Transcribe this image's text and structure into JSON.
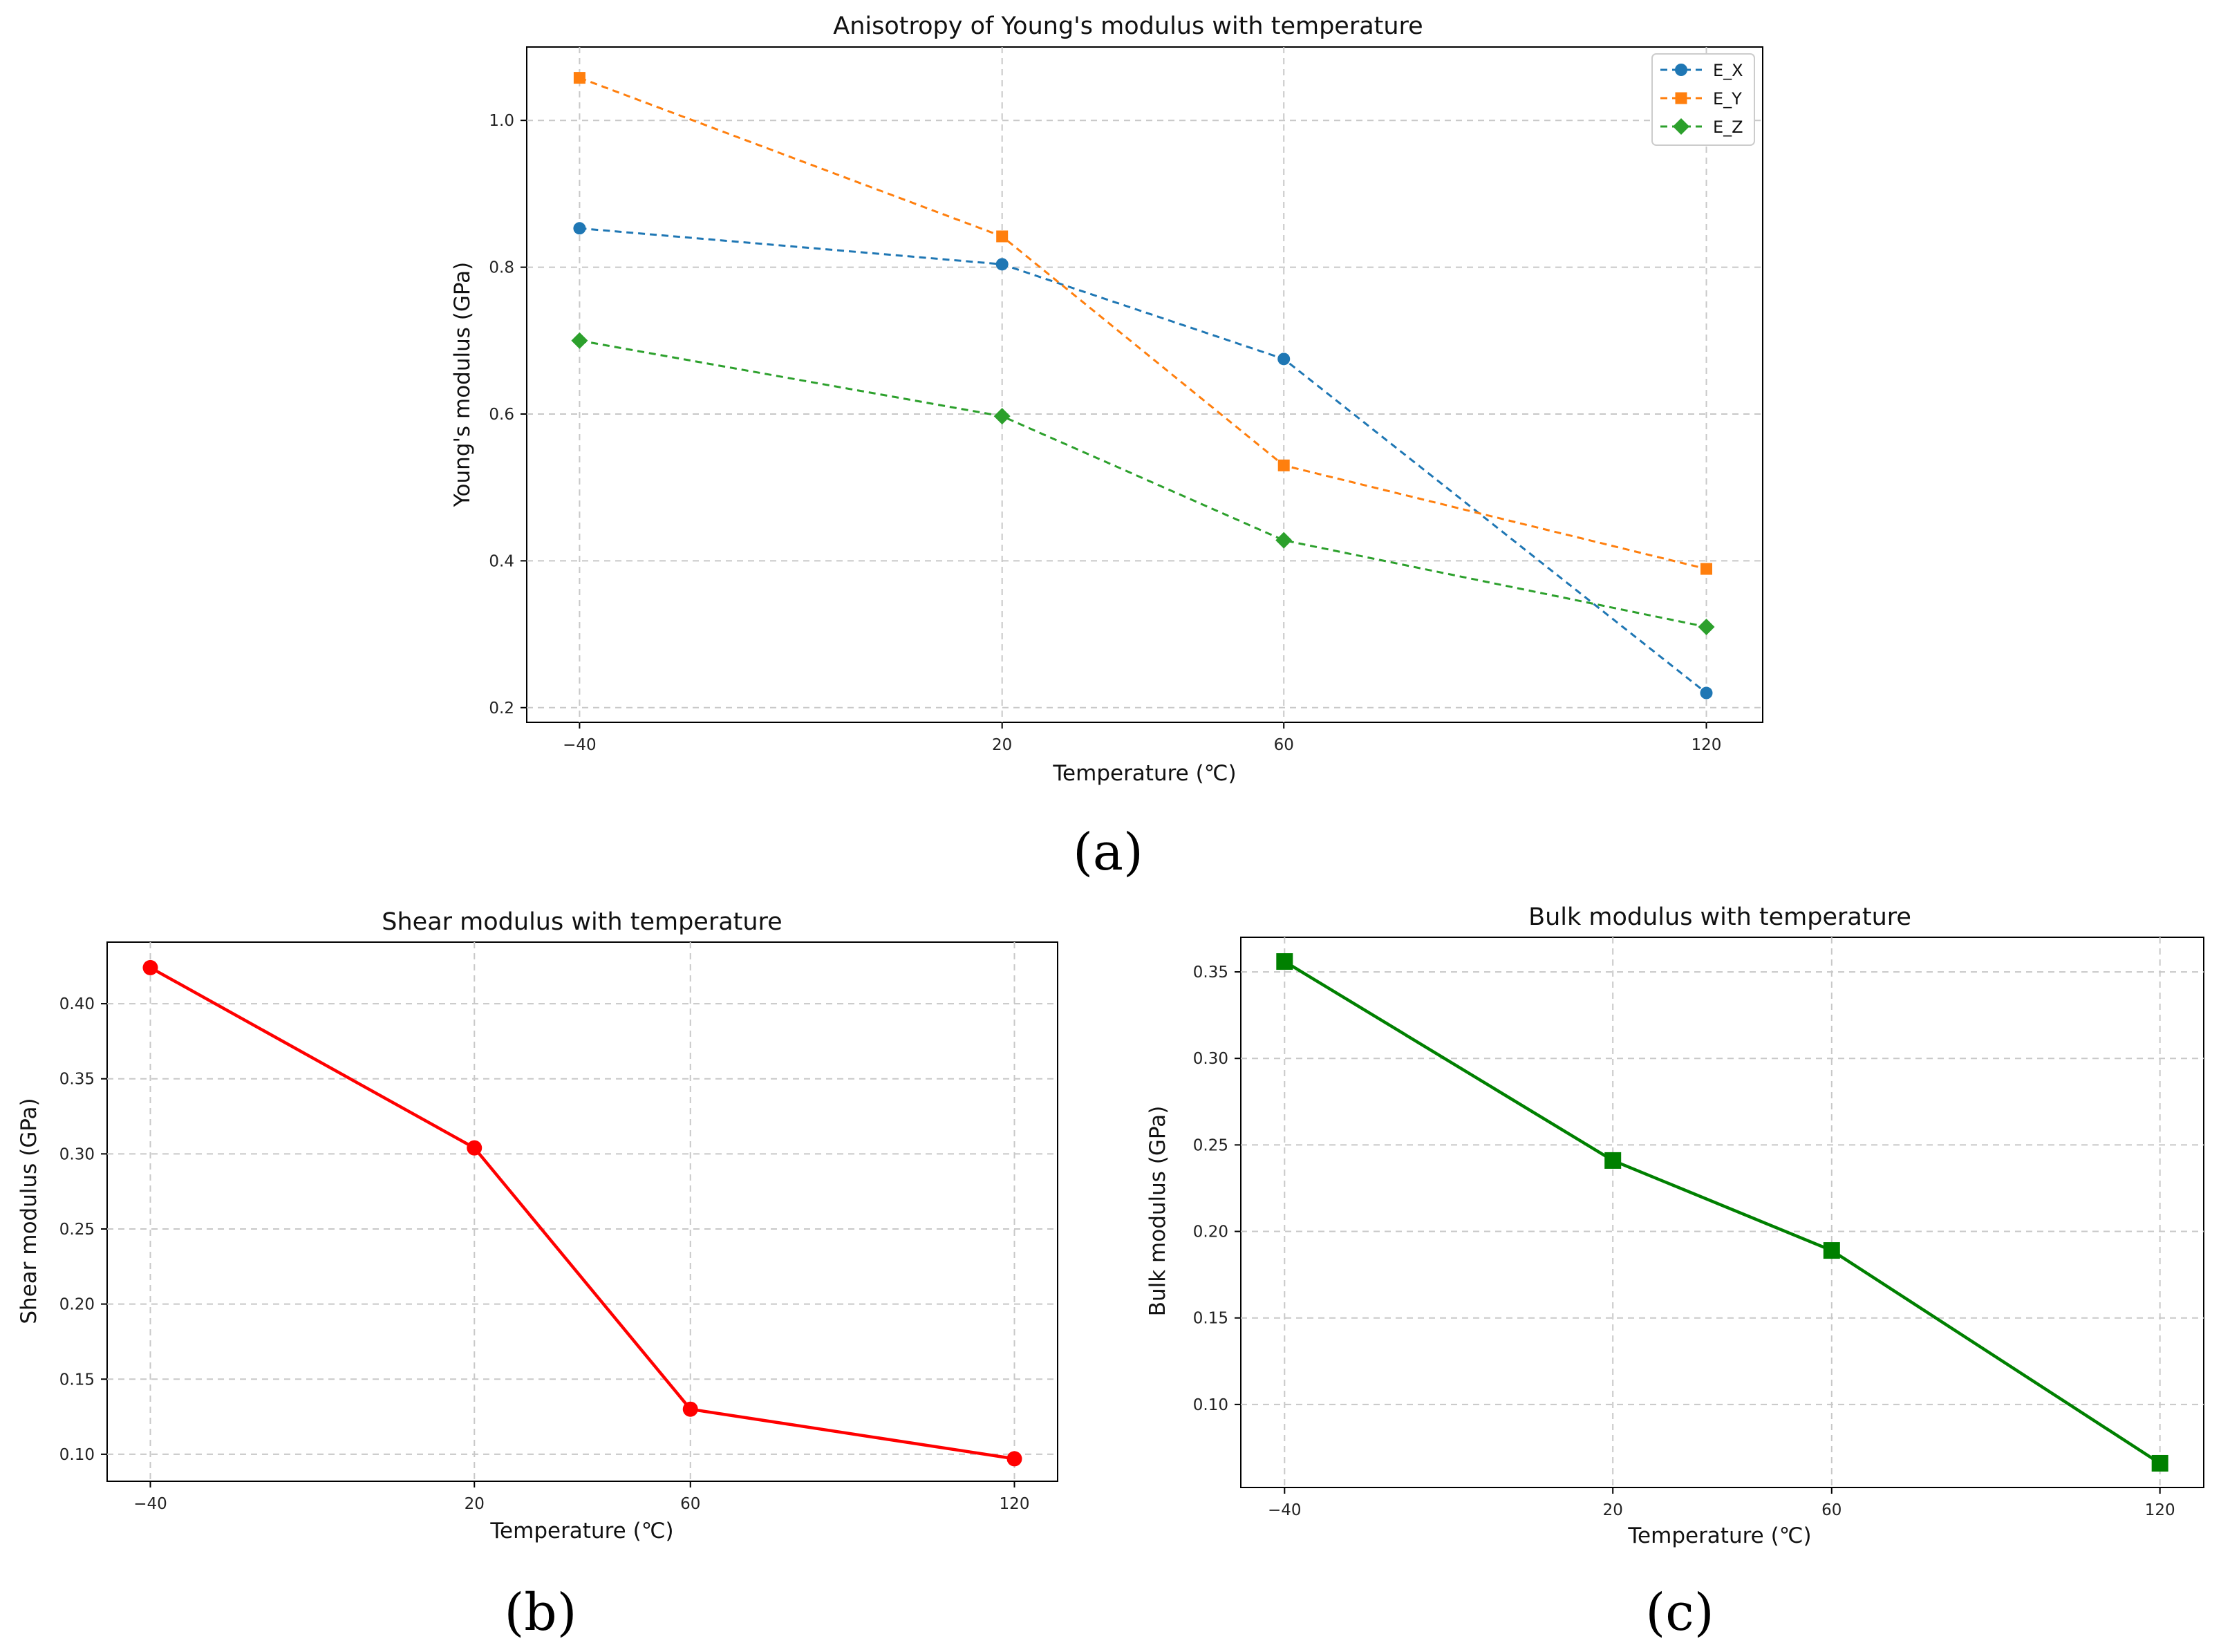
{
  "chart_data": [
    {
      "id": "a",
      "type": "line",
      "title": "Anisotropy of Young's modulus with temperature",
      "xlabel": "Temperature (℃)",
      "ylabel": "Young's modulus (GPa)",
      "panel_label": "(a)",
      "x": [
        -40,
        20,
        60,
        120
      ],
      "xticks": [
        -40,
        20,
        60,
        120
      ],
      "xtick_labels": [
        "−40",
        "20",
        "60",
        "120"
      ],
      "xlim": [
        -47.5,
        128
      ],
      "ylim": [
        0.18,
        1.1
      ],
      "yticks": [
        0.2,
        0.4,
        0.6,
        0.8,
        1.0
      ],
      "ytick_labels": [
        "0.2",
        "0.4",
        "0.6",
        "0.8",
        "1.0"
      ],
      "grid": true,
      "legend_position": "top-right",
      "series": [
        {
          "name": "E_X",
          "values": [
            0.853,
            0.804,
            0.675,
            0.22
          ],
          "color": "#1f77b4",
          "marker": "circle",
          "line": "dashed"
        },
        {
          "name": "E_Y",
          "values": [
            1.058,
            0.842,
            0.53,
            0.389
          ],
          "color": "#ff7f0e",
          "marker": "square",
          "line": "dashed"
        },
        {
          "name": "E_Z",
          "values": [
            0.7,
            0.597,
            0.428,
            0.31
          ],
          "color": "#2ca02c",
          "marker": "diamond",
          "line": "dashed"
        }
      ]
    },
    {
      "id": "b",
      "type": "line",
      "title": "Shear modulus with temperature",
      "xlabel": "Temperature (℃)",
      "ylabel": "Shear modulus (GPa)",
      "panel_label": "(b)",
      "x": [
        -40,
        20,
        60,
        120
      ],
      "xticks": [
        -40,
        20,
        60,
        120
      ],
      "xtick_labels": [
        "−40",
        "20",
        "60",
        "120"
      ],
      "xlim": [
        -48,
        128
      ],
      "ylim": [
        0.082,
        0.441
      ],
      "yticks": [
        0.1,
        0.15,
        0.2,
        0.25,
        0.3,
        0.35,
        0.4
      ],
      "ytick_labels": [
        "0.10",
        "0.15",
        "0.20",
        "0.25",
        "0.30",
        "0.35",
        "0.40"
      ],
      "grid": true,
      "series": [
        {
          "name": "Shear modulus",
          "values": [
            0.424,
            0.304,
            0.13,
            0.097
          ],
          "color": "#ff0000",
          "marker": "circle",
          "line": "solid"
        }
      ]
    },
    {
      "id": "c",
      "type": "line",
      "title": "Bulk modulus with temperature",
      "xlabel": "Temperature (℃)",
      "ylabel": "Bulk modulus (GPa)",
      "panel_label": "(c)",
      "x": [
        -40,
        20,
        60,
        120
      ],
      "xticks": [
        -40,
        20,
        60,
        120
      ],
      "xtick_labels": [
        "−40",
        "20",
        "60",
        "120"
      ],
      "xlim": [
        -48,
        128
      ],
      "ylim": [
        0.052,
        0.37
      ],
      "yticks": [
        0.1,
        0.15,
        0.2,
        0.25,
        0.3,
        0.35
      ],
      "ytick_labels": [
        "0.10",
        "0.15",
        "0.20",
        "0.25",
        "0.30",
        "0.35"
      ],
      "grid": true,
      "series": [
        {
          "name": "Bulk modulus",
          "values": [
            0.356,
            0.241,
            0.189,
            0.066
          ],
          "color": "#008000",
          "marker": "square",
          "line": "solid"
        }
      ]
    }
  ]
}
